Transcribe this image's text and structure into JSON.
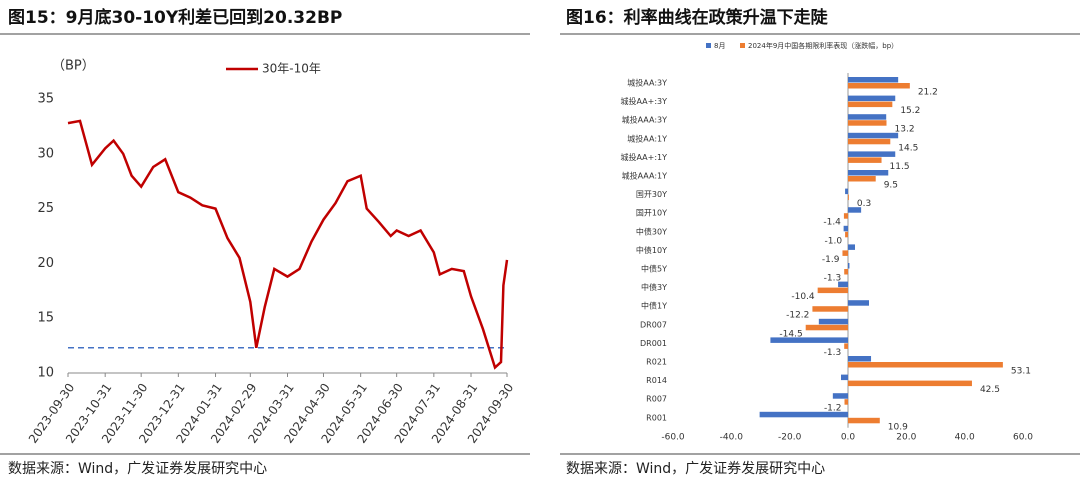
{
  "chart_data": [
    {
      "type": "line",
      "title": "图15：9月底30-10Y利差已回到20.32BP",
      "source": "数据来源：Wind，广发证券发展研究中心",
      "y_label": "（BP）",
      "x": [
        "2023-09-30",
        "2023-10-10",
        "2023-10-15",
        "2023-10-20",
        "2023-10-31",
        "2023-11-07",
        "2023-11-15",
        "2023-11-22",
        "2023-11-30",
        "2023-12-10",
        "2023-12-20",
        "2023-12-31",
        "2024-01-10",
        "2024-01-20",
        "2024-01-31",
        "2024-02-10",
        "2024-02-20",
        "2024-02-29",
        "2024-03-05",
        "2024-03-12",
        "2024-03-20",
        "2024-03-31",
        "2024-04-10",
        "2024-04-20",
        "2024-04-30",
        "2024-05-10",
        "2024-05-20",
        "2024-05-31",
        "2024-06-05",
        "2024-06-15",
        "2024-06-25",
        "2024-06-30",
        "2024-07-10",
        "2024-07-20",
        "2024-07-31",
        "2024-08-05",
        "2024-08-15",
        "2024-08-25",
        "2024-08-31",
        "2024-09-10",
        "2024-09-20",
        "2024-09-25",
        "2024-09-27",
        "2024-09-30"
      ],
      "series": [
        {
          "name": "30年-10年",
          "color": "#c00000",
          "values": [
            32.8,
            33,
            31,
            29,
            30.5,
            31.2,
            30,
            28,
            27,
            28.8,
            29.5,
            26.5,
            26,
            25.3,
            25,
            22.3,
            20.5,
            16.5,
            12.3,
            16,
            19.5,
            18.8,
            19.5,
            22,
            24,
            25.5,
            27.5,
            28,
            25,
            23.8,
            22.5,
            23,
            22.5,
            23,
            21,
            19,
            19.5,
            19.3,
            17,
            14,
            10.5,
            11,
            18,
            20.32
          ]
        }
      ],
      "hline": {
        "value": 12.3,
        "color": "#4472c4"
      },
      "xlim": [
        "2023-09-30",
        "2024-09-30"
      ],
      "xticks": [
        "2023-09-30",
        "2023-10-31",
        "2023-11-30",
        "2023-12-31",
        "2024-01-31",
        "2024-02-29",
        "2024-03-31",
        "2024-04-30",
        "2024-05-31",
        "2024-06-30",
        "2024-07-31",
        "2024-08-31",
        "2024-09-30"
      ],
      "ylim": [
        10,
        35
      ],
      "yticks": [
        10,
        15,
        20,
        25,
        30,
        35
      ]
    },
    {
      "type": "hbar",
      "title": "图16：利率曲线在政策升温下走陡",
      "source": "数据来源：Wind，广发证券发展研究中心",
      "categories": [
        "城投AA:3Y",
        "城投AA+:3Y",
        "城投AAA:3Y",
        "城投AA:1Y",
        "城投AA+:1Y",
        "城投AAA:1Y",
        "国开30Y",
        "国开10Y",
        "中债30Y",
        "中债10Y",
        "中债5Y",
        "中债3Y",
        "中债1Y",
        "DR007",
        "DR001",
        "R021",
        "R014",
        "R007",
        "R001"
      ],
      "series": [
        {
          "name": "8月",
          "color": "#4472c4",
          "values": [
            17.2,
            16.2,
            13.1,
            17.2,
            16.2,
            13.8,
            -1,
            4.5,
            -1.5,
            2.4,
            0.5,
            -3.4,
            7.2,
            -10,
            -26.6,
            7.9,
            -2.4,
            -5.2,
            -30.3
          ]
        },
        {
          "name": "2024年9月中国各期限利率表现（涨跌幅，bp）",
          "color": "#ed7d31",
          "values": [
            21.2,
            15.2,
            13.2,
            14.5,
            11.5,
            9.5,
            0.3,
            -1.4,
            -1,
            -1.9,
            -1.3,
            -10.4,
            -12.2,
            -14.5,
            -1.3,
            53.1,
            42.5,
            -1.2,
            10.9
          ],
          "value_labels": [
            "21.2",
            "15.2",
            "13.2",
            "14.5",
            "11.5",
            "9.5",
            "0.3",
            "-1.4",
            "-1.0",
            "-1.9",
            "-1.3",
            "-10.4",
            "-12.2",
            "-14.5",
            "-1.3",
            "53.1",
            "42.5",
            "-1.2",
            "10.9"
          ]
        }
      ],
      "xlim": [
        -60,
        60
      ],
      "xticks": [
        {
          "value": -60,
          "label": "-60.0"
        },
        {
          "value": -40,
          "label": "-40.0"
        },
        {
          "value": -20,
          "label": "-20.0"
        },
        {
          "value": 0,
          "label": "0.0"
        },
        {
          "value": 20,
          "label": "20.0"
        },
        {
          "value": 40,
          "label": "40.0"
        },
        {
          "value": 60,
          "label": "60.0"
        }
      ]
    }
  ]
}
